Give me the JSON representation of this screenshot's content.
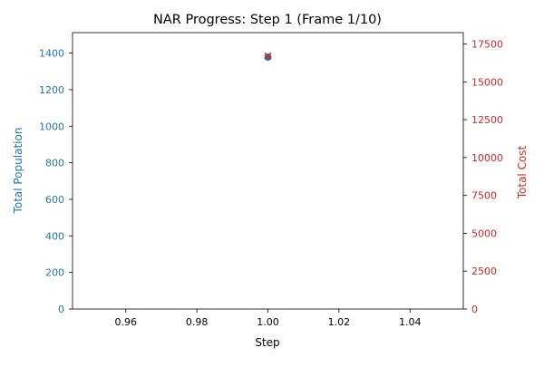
{
  "chart_data": {
    "type": "scatter",
    "title": "NAR Progress: Step 1 (Frame 1/10)",
    "xlabel": "Step",
    "ylabel_left": "Total Population",
    "ylabel_right": "Total Cost",
    "xlim": [
      0.945,
      1.055
    ],
    "ylim_left": [
      0,
      1512
    ],
    "ylim_right": [
      0,
      18250
    ],
    "x_ticks": [
      0.96,
      0.98,
      1.0,
      1.02,
      1.04
    ],
    "x_tick_labels": [
      "0.96",
      "0.98",
      "1.00",
      "1.02",
      "1.04"
    ],
    "y_left_ticks": [
      0,
      200,
      400,
      600,
      800,
      1000,
      1200,
      1400
    ],
    "y_left_tick_labels": [
      "0",
      "200",
      "400",
      "600",
      "800",
      "1000",
      "1200",
      "1400"
    ],
    "y_right_ticks": [
      0,
      2500,
      5000,
      7500,
      10000,
      12500,
      15000,
      17500
    ],
    "y_right_tick_labels": [
      "0",
      "2500",
      "5000",
      "7500",
      "10000",
      "12500",
      "15000",
      "17500"
    ],
    "grid": false,
    "series": [
      {
        "axis": "left",
        "x": [
          1.0
        ],
        "values": [
          1378
        ],
        "color": "#1f77b4",
        "marker": "circle"
      },
      {
        "axis": "right",
        "x": [
          1.0
        ],
        "values": [
          16700
        ],
        "color": "#d62728",
        "marker": "x"
      }
    ]
  },
  "colors": {
    "left_axis": "#1f77b4",
    "right_axis": "#d62728",
    "axes": "#000000"
  }
}
